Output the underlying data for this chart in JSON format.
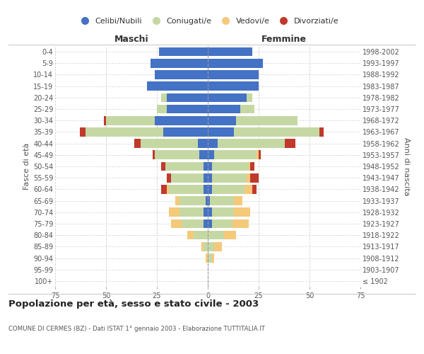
{
  "age_groups": [
    "100+",
    "95-99",
    "90-94",
    "85-89",
    "80-84",
    "75-79",
    "70-74",
    "65-69",
    "60-64",
    "55-59",
    "50-54",
    "45-49",
    "40-44",
    "35-39",
    "30-34",
    "25-29",
    "20-24",
    "15-19",
    "10-14",
    "5-9",
    "0-4"
  ],
  "birth_years": [
    "≤ 1902",
    "1903-1907",
    "1908-1912",
    "1913-1917",
    "1918-1922",
    "1923-1927",
    "1928-1932",
    "1933-1937",
    "1938-1942",
    "1943-1947",
    "1948-1952",
    "1953-1957",
    "1958-1962",
    "1963-1967",
    "1968-1972",
    "1973-1977",
    "1978-1982",
    "1983-1987",
    "1988-1992",
    "1993-1997",
    "1998-2002"
  ],
  "male_celibi": [
    0,
    0,
    0,
    0,
    0,
    2,
    2,
    1,
    2,
    2,
    2,
    4,
    5,
    22,
    26,
    20,
    20,
    30,
    26,
    28,
    24
  ],
  "male_coniugati": [
    0,
    0,
    0,
    2,
    7,
    11,
    12,
    13,
    17,
    16,
    19,
    22,
    28,
    38,
    24,
    5,
    3,
    0,
    0,
    0,
    0
  ],
  "male_vedovi": [
    0,
    0,
    1,
    1,
    3,
    5,
    5,
    2,
    1,
    0,
    0,
    0,
    0,
    0,
    0,
    0,
    0,
    0,
    0,
    0,
    0
  ],
  "male_divorziati": [
    0,
    0,
    0,
    0,
    0,
    0,
    0,
    0,
    3,
    2,
    2,
    1,
    3,
    3,
    1,
    0,
    0,
    0,
    0,
    0,
    0
  ],
  "female_celibi": [
    0,
    0,
    0,
    0,
    0,
    2,
    2,
    1,
    2,
    2,
    2,
    3,
    5,
    13,
    14,
    16,
    19,
    25,
    25,
    27,
    22
  ],
  "female_coniugati": [
    0,
    0,
    2,
    3,
    8,
    10,
    11,
    12,
    16,
    17,
    18,
    21,
    33,
    42,
    30,
    7,
    3,
    0,
    0,
    0,
    0
  ],
  "female_vedovi": [
    0,
    0,
    1,
    4,
    6,
    8,
    8,
    4,
    4,
    2,
    1,
    1,
    0,
    0,
    0,
    0,
    0,
    0,
    0,
    0,
    0
  ],
  "female_divorziati": [
    0,
    0,
    0,
    0,
    0,
    0,
    0,
    0,
    2,
    4,
    2,
    1,
    5,
    2,
    0,
    0,
    0,
    0,
    0,
    0,
    0
  ],
  "color_celibi": "#4472c4",
  "color_coniugati": "#c5d8a4",
  "color_vedovi": "#f5c97a",
  "color_divorziati": "#c0392b",
  "xlim": 75,
  "title": "Popolazione per età, sesso e stato civile - 2003",
  "subtitle": "COMUNE DI CERMES (BZ) - Dati ISTAT 1° gennaio 2003 - Elaborazione TUTTITALIA.IT",
  "ylabel_left": "Fasce di età",
  "ylabel_right": "Anni di nascita",
  "xlabel_left": "Maschi",
  "xlabel_right": "Femmine",
  "bg_color": "#ffffff",
  "grid_color": "#cccccc"
}
